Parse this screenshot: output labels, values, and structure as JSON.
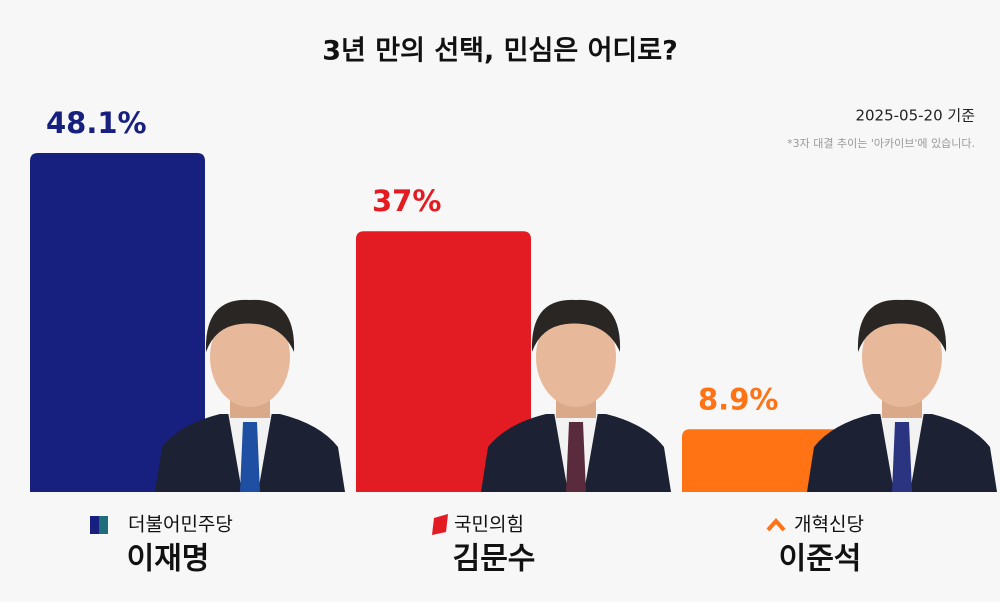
{
  "chart_data": {
    "type": "bar",
    "title": "3년 만의 선택, 민심은 어디로?",
    "subtitle": "2025-05-20 기준",
    "annotation": "*3자 대결 추이는 '아카이브'에 있습니다.",
    "categories": [
      "이재명",
      "김문수",
      "이준석"
    ],
    "parties": [
      "더불어민주당",
      "국민의힘",
      "개혁신당"
    ],
    "values": [
      48.1,
      37,
      8.9
    ],
    "value_labels": [
      "48.1%",
      "37%",
      "8.9%"
    ],
    "colors": [
      "#17207f",
      "#e31b23",
      "#ff7315"
    ]
  }
}
